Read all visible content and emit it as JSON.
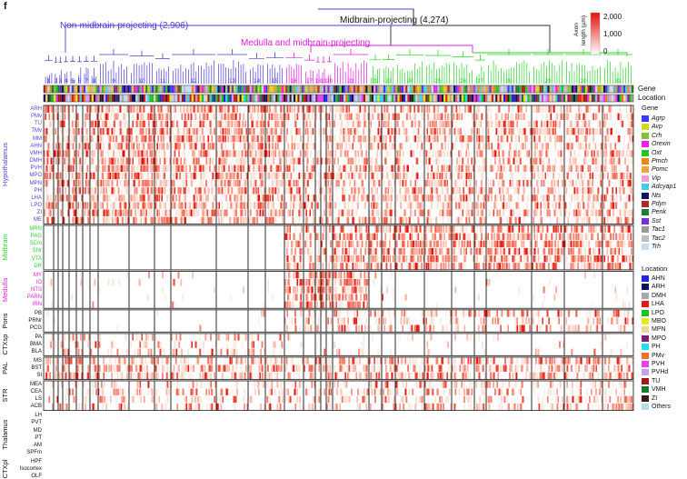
{
  "panel_letter": "f",
  "titles": {
    "non_midbrain": "Non-midbrain-projecting (2,906)",
    "midbrain": "Midbrain-projecting (4,274)",
    "medulla_midbrain": "Medulla and midbrain-projecting"
  },
  "colors": {
    "non_midbrain": "#4b3fd8",
    "midbrain": "#2fd32f",
    "medulla_midbrain": "#e21ee0",
    "heat_low": "#ffe9e1",
    "heat_high": "#e3120b"
  },
  "colorbar": {
    "title_line1": "Axon",
    "title_line2": "length (µm)",
    "ticks": [
      "2,000",
      "1,000",
      "0"
    ]
  },
  "clusters": [
    "1",
    "2",
    "3",
    "4",
    "5",
    "6",
    "7",
    "8",
    "9",
    "10",
    "11",
    "12",
    "13",
    "14",
    "15",
    "16",
    "17",
    "18",
    "19",
    "20",
    "21",
    "22",
    "23",
    "24",
    "25",
    "26",
    "27",
    "28",
    "29",
    "30",
    "31"
  ],
  "track_labels": {
    "gene": "Gene",
    "location": "Location"
  },
  "row_groups": [
    {
      "label": "Hypothalamus",
      "color": "#4b3fd8",
      "regions": [
        "ARH",
        "PMv",
        "TU",
        "TMv",
        "MM",
        "AHN",
        "VMH",
        "DMH",
        "PVH",
        "MPO",
        "MPN",
        "PH",
        "LHA",
        "LPO",
        "ZI",
        "ME"
      ]
    },
    {
      "label": "Midbrain",
      "color": "#2fd32f",
      "regions": [
        "MRN",
        "PAG",
        "SCm",
        "SNr",
        "VTA",
        "DR"
      ]
    },
    {
      "label": "Medulla",
      "color": "#e21ee0",
      "regions": [
        "MY",
        "IO",
        "NTS",
        "PARN",
        "IRN"
      ]
    },
    {
      "label": "Pons",
      "color": "#111111",
      "regions": [
        "PB",
        "PRNr",
        "PCG"
      ]
    },
    {
      "label": "CTXsp",
      "color": "#111111",
      "regions": [
        "PA",
        "BMA",
        "BLA"
      ]
    },
    {
      "label": "PAL",
      "color": "#111111",
      "regions": [
        "MS",
        "BST",
        "SI"
      ]
    },
    {
      "label": "STR",
      "color": "#111111",
      "regions": [
        "MEA",
        "CEA",
        "LS",
        "ACB"
      ]
    },
    {
      "label": "Thalamus",
      "color": "#111111",
      "regions": [
        "LH",
        "PVT",
        "MD",
        "PT",
        "AM",
        "SPFm"
      ]
    },
    {
      "label": "CTXpl",
      "color": "#111111",
      "regions": [
        "HPF",
        "Isocortex",
        "OLF"
      ]
    }
  ],
  "legend": {
    "gene_title": "Gene",
    "genes": [
      {
        "name": "Agrp",
        "color": "#3b3bff"
      },
      {
        "name": "Avp",
        "color": "#d6d625"
      },
      {
        "name": "Crh",
        "color": "#86c036"
      },
      {
        "name": "Orexin",
        "color": "#ee20ee"
      },
      {
        "name": "Oxt",
        "color": "#27c427"
      },
      {
        "name": "Pmch",
        "color": "#e8861e"
      },
      {
        "name": "Pomc",
        "color": "#f2a238"
      },
      {
        "name": "Vip",
        "color": "#ef9be0"
      },
      {
        "name": "Adcyap1",
        "color": "#42d0e8"
      },
      {
        "name": "Nts",
        "color": "#141460"
      },
      {
        "name": "Pdyn",
        "color": "#b02828"
      },
      {
        "name": "Penk",
        "color": "#1e7d30"
      },
      {
        "name": "Sst",
        "color": "#7b2cd6"
      },
      {
        "name": "Tac1",
        "color": "#9a9a9a"
      },
      {
        "name": "Tac2",
        "color": "#bdbdbd"
      },
      {
        "name": "Trh",
        "color": "#c7dcef"
      }
    ],
    "location_title": "Location",
    "locations": [
      {
        "name": "AHN",
        "color": "#2525d8"
      },
      {
        "name": "ARH",
        "color": "#101060"
      },
      {
        "name": "DMH",
        "color": "#a8a8a8"
      },
      {
        "name": "LHA",
        "color": "#e31a1a"
      },
      {
        "name": "LPO",
        "color": "#20c020"
      },
      {
        "name": "MBO",
        "color": "#e8e81e"
      },
      {
        "name": "MPN",
        "color": "#f0d890"
      },
      {
        "name": "MPO",
        "color": "#7a1e80"
      },
      {
        "name": "PH",
        "color": "#2ad6f0"
      },
      {
        "name": "PMv",
        "color": "#f07030"
      },
      {
        "name": "PVH",
        "color": "#e83fe8"
      },
      {
        "name": "PVHd",
        "color": "#c8a0f0"
      },
      {
        "name": "TU",
        "color": "#a01818"
      },
      {
        "name": "VMH",
        "color": "#1a7a30"
      },
      {
        "name": "ZI",
        "color": "#3a1a1a"
      },
      {
        "name": "Others",
        "color": "#bcd8ec"
      }
    ]
  }
}
